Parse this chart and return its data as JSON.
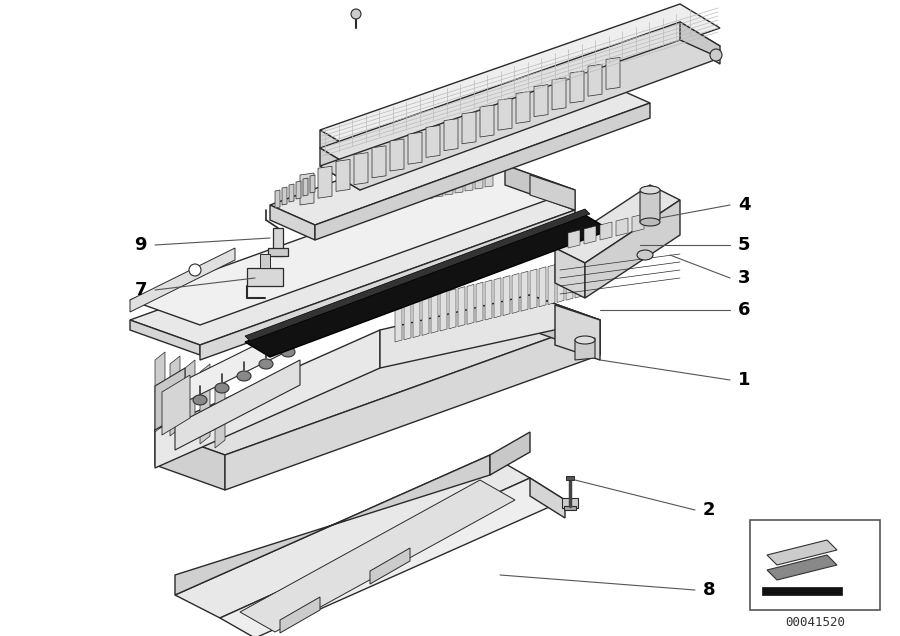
{
  "background_color": "#ffffff",
  "line_color": "#2a2a2a",
  "label_color": "#000000",
  "figure_width": 9.0,
  "figure_height": 6.36,
  "dpi": 100,
  "part_number": "00041520",
  "label_fontsize": 13,
  "face_light": "#f0f0f0",
  "face_mid": "#d8d8d8",
  "face_dark": "#b8b8b8",
  "face_top": "#f5f5f5",
  "black": "#111111"
}
